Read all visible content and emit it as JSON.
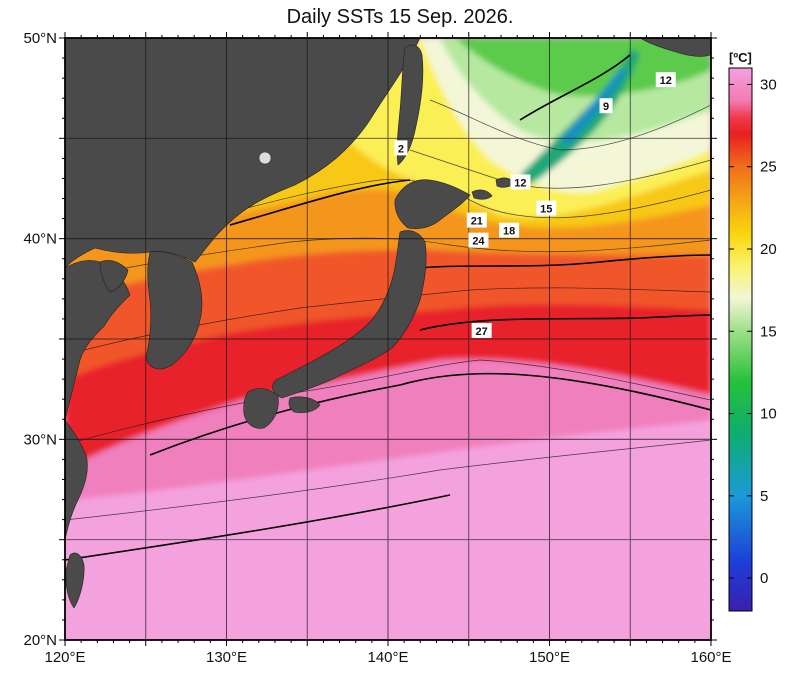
{
  "title": "Daily SSTs 15 Sep. 2026.",
  "map": {
    "lon_range": [
      120,
      160
    ],
    "lat_range": [
      20,
      50
    ],
    "lon_ticks": [
      {
        "value": 120,
        "label": "120°E"
      },
      {
        "value": 130,
        "label": "130°E"
      },
      {
        "value": 140,
        "label": "140°E"
      },
      {
        "value": 150,
        "label": "150°E"
      },
      {
        "value": 160,
        "label": "160°E"
      }
    ],
    "lat_ticks": [
      {
        "value": 20,
        "label": "20°N"
      },
      {
        "value": 30,
        "label": "30°N"
      },
      {
        "value": 40,
        "label": "40°N"
      },
      {
        "value": 50,
        "label": "50°N"
      }
    ],
    "grid_lons": [
      125,
      130,
      135,
      140,
      145,
      150,
      155
    ],
    "grid_lats": [
      25,
      30,
      35,
      40,
      45
    ],
    "land_color": "#4a4a4a"
  },
  "isotherm_labels": [
    {
      "text": "12",
      "lon": 157.2,
      "lat": 47.9
    },
    {
      "text": "9",
      "lon": 153.5,
      "lat": 46.6
    },
    {
      "text": "12",
      "lon": 148.2,
      "lat": 42.8
    },
    {
      "text": "15",
      "lon": 149.8,
      "lat": 41.5
    },
    {
      "text": "18",
      "lon": 147.5,
      "lat": 40.4
    },
    {
      "text": "21",
      "lon": 145.5,
      "lat": 40.9
    },
    {
      "text": "24",
      "lon": 145.6,
      "lat": 39.9
    },
    {
      "text": "27",
      "lon": 145.8,
      "lat": 35.4
    },
    {
      "text": "2",
      "lon": 140.8,
      "lat": 44.5
    }
  ],
  "colorbar": {
    "unit": "[ºC]",
    "min": -2,
    "max": 31,
    "ticks": [
      {
        "value": 0,
        "label": "0"
      },
      {
        "value": 5,
        "label": "5"
      },
      {
        "value": 10,
        "label": "10"
      },
      {
        "value": 15,
        "label": "15"
      },
      {
        "value": 20,
        "label": "20"
      },
      {
        "value": 25,
        "label": "25"
      },
      {
        "value": 30,
        "label": "30"
      }
    ],
    "color_stops": [
      {
        "value": -2,
        "color": "#3a1fb0"
      },
      {
        "value": 1,
        "color": "#1c3fd8"
      },
      {
        "value": 5,
        "color": "#1a9ad8"
      },
      {
        "value": 9,
        "color": "#0fae6a"
      },
      {
        "value": 12,
        "color": "#27c23a"
      },
      {
        "value": 15,
        "color": "#9ee08a"
      },
      {
        "value": 17,
        "color": "#f2f6d6"
      },
      {
        "value": 19,
        "color": "#fbf26a"
      },
      {
        "value": 21,
        "color": "#f8d40c"
      },
      {
        "value": 23,
        "color": "#f6a316"
      },
      {
        "value": 25,
        "color": "#f06e1c"
      },
      {
        "value": 27,
        "color": "#e8201e"
      },
      {
        "value": 28,
        "color": "#f03a4c"
      },
      {
        "value": 29,
        "color": "#f27ab2"
      },
      {
        "value": 31,
        "color": "#f6a0e2"
      }
    ]
  }
}
